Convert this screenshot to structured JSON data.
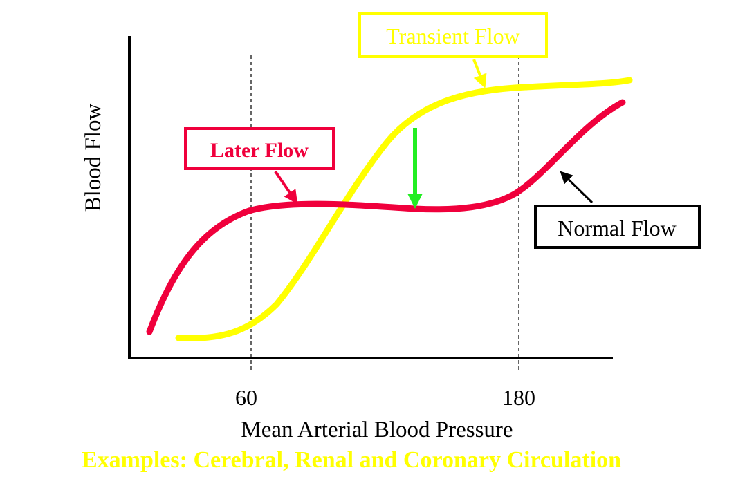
{
  "xlabel": "Mean Arterial Blood Pressure",
  "ylabel": "Blood Flow",
  "xticks": [
    "60",
    "180"
  ],
  "labels": {
    "transient": "Transient Flow",
    "later": "Later Flow",
    "normal": "Normal Flow"
  },
  "caption": "Examples: Cerebral, Renal and Coronary Circulation",
  "colors": {
    "transient": "#ffff00",
    "later": "#f0003c",
    "normal": "#000000",
    "arrow": "#22ee22",
    "caption": "#ffff00"
  }
}
